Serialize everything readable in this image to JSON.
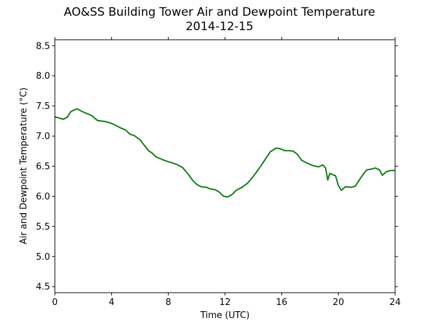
{
  "chart_data": {
    "type": "line",
    "title": "AO&SS Building Tower Air and Dewpoint Temperature",
    "subtitle": "2014-12-15",
    "xlabel": "Time (UTC)",
    "ylabel": "Air and Dewpoint Temperature (°C)",
    "xlim": [
      0,
      24
    ],
    "ylim": [
      4.4,
      8.6
    ],
    "xticks": [
      0,
      4,
      8,
      12,
      16,
      20,
      24
    ],
    "yticks": [
      4.5,
      5.0,
      5.5,
      6.0,
      6.5,
      7.0,
      7.5,
      8.0,
      8.5
    ],
    "ytick_labels": [
      "4.5",
      "5.0",
      "5.5",
      "6.0",
      "6.5",
      "7.0",
      "7.5",
      "8.0",
      "8.5"
    ],
    "grid": false,
    "series": [
      {
        "color": "#107d10",
        "x": [
          0,
          0.3,
          0.6,
          0.9,
          1.1,
          1.4,
          1.6,
          1.9,
          2.2,
          2.6,
          3.0,
          3.3,
          3.6,
          4.0,
          4.2,
          4.6,
          5.0,
          5.3,
          5.6,
          6.0,
          6.3,
          6.6,
          6.9,
          7.1,
          7.5,
          7.8,
          8.2,
          8.6,
          9.0,
          9.4,
          9.7,
          10.0,
          10.3,
          10.7,
          11.0,
          11.3,
          11.6,
          11.9,
          12.2,
          12.5,
          12.8,
          13.2,
          13.6,
          14.0,
          14.4,
          14.8,
          15.2,
          15.6,
          15.9,
          16.2,
          16.5,
          16.8,
          17.1,
          17.4,
          17.8,
          18.2,
          18.6,
          18.9,
          19.1,
          19.25,
          19.4,
          19.8,
          20.0,
          20.2,
          20.5,
          20.9,
          21.2,
          21.5,
          21.8,
          22.0,
          22.3,
          22.6,
          22.9,
          23.1,
          23.4,
          23.7,
          24.0
        ],
        "y": [
          7.32,
          7.3,
          7.28,
          7.32,
          7.4,
          7.44,
          7.45,
          7.41,
          7.38,
          7.34,
          7.26,
          7.25,
          7.24,
          7.21,
          7.19,
          7.14,
          7.1,
          7.03,
          7.01,
          6.94,
          6.85,
          6.76,
          6.71,
          6.66,
          6.62,
          6.59,
          6.56,
          6.53,
          6.48,
          6.37,
          6.27,
          6.2,
          6.16,
          6.15,
          6.12,
          6.11,
          6.07,
          6.0,
          5.99,
          6.03,
          6.1,
          6.15,
          6.22,
          6.33,
          6.46,
          6.6,
          6.74,
          6.8,
          6.79,
          6.76,
          6.76,
          6.75,
          6.7,
          6.6,
          6.55,
          6.51,
          6.49,
          6.52,
          6.47,
          6.27,
          6.38,
          6.34,
          6.18,
          6.1,
          6.16,
          6.15,
          6.17,
          6.28,
          6.38,
          6.44,
          6.45,
          6.47,
          6.44,
          6.35,
          6.41,
          6.43,
          6.43
        ]
      }
    ]
  }
}
